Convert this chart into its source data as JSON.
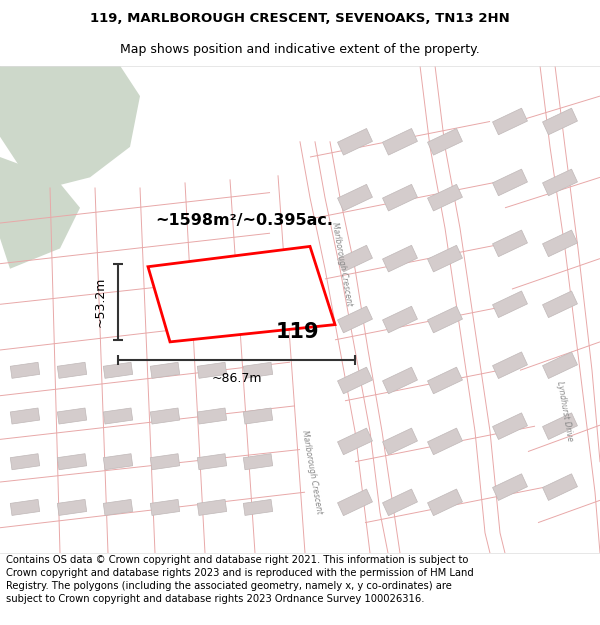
{
  "title_line1": "119, MARLBOROUGH CRESCENT, SEVENOAKS, TN13 2HN",
  "title_line2": "Map shows position and indicative extent of the property.",
  "footer_text": "Contains OS data © Crown copyright and database right 2021. This information is subject to Crown copyright and database rights 2023 and is reproduced with the permission of HM Land Registry. The polygons (including the associated geometry, namely x, y co-ordinates) are subject to Crown copyright and database rights 2023 Ordnance Survey 100026316.",
  "area_label": "~1598m²/~0.395ac.",
  "width_label": "~86.7m",
  "height_label": "~53.2m",
  "plot_number": "119",
  "map_bg": "#f7f2f2",
  "plot_color": "#ff0000",
  "road_color": "#e8a8a8",
  "building_color": "#d4cccc",
  "building_edge": "#c0b8b8",
  "green_color": "#cdd8ca",
  "title_fontsize": 9.5,
  "footer_fontsize": 7.2,
  "road_lw": 0.7,
  "plot_lw": 2.0
}
